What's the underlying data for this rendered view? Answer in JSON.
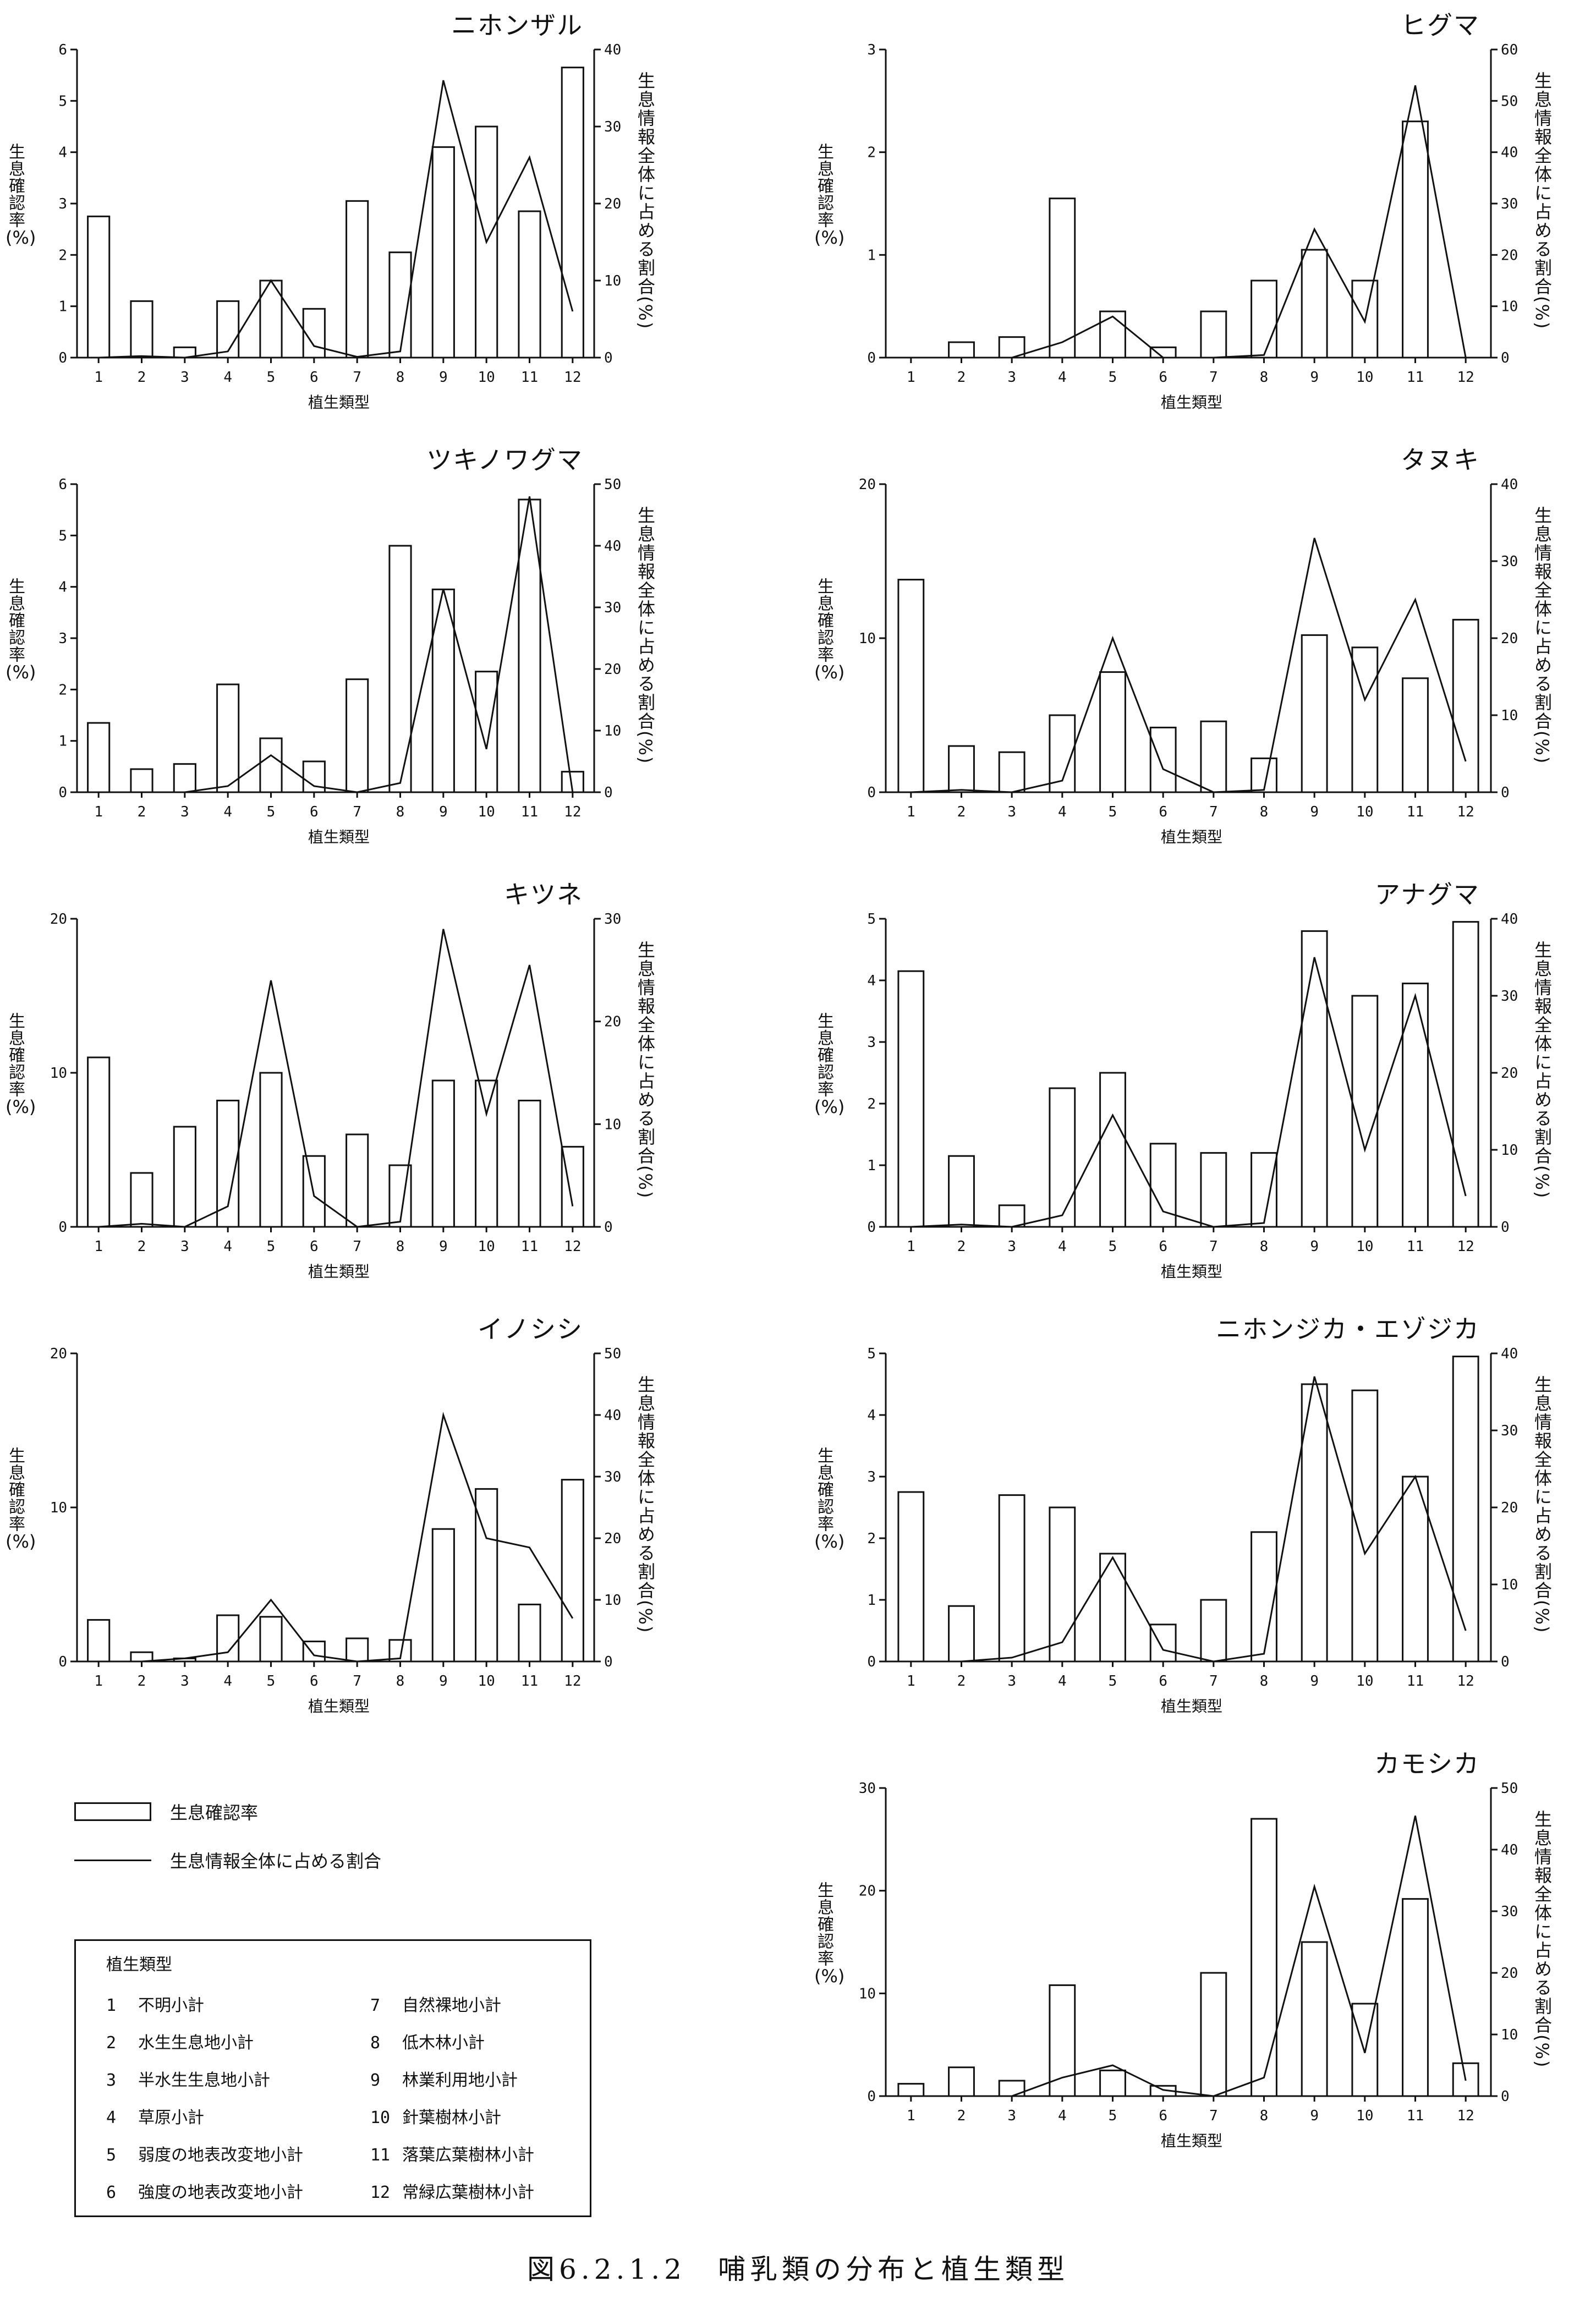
{
  "figure_caption": "図6.2.1.2　哺乳類の分布と植生類型",
  "left_axis_label": "生息確認率",
  "left_axis_unit": "(%)",
  "right_axis_label": "生息情報全体に占める割合(%)",
  "x_axis_label": "植生類型",
  "legend": {
    "bar_label": "生息確認率",
    "line_label": "生息情報全体に占める割合"
  },
  "vegetation_legend": {
    "title": "植生類型",
    "items": [
      {
        "num": "1",
        "name": "不明小計"
      },
      {
        "num": "2",
        "name": "水生生息地小計"
      },
      {
        "num": "3",
        "name": "半水生生息地小計"
      },
      {
        "num": "4",
        "name": "草原小計"
      },
      {
        "num": "5",
        "name": "弱度の地表改変地小計"
      },
      {
        "num": "6",
        "name": "強度の地表改変地小計"
      },
      {
        "num": "7",
        "name": "自然裸地小計"
      },
      {
        "num": "8",
        "name": "低木林小計"
      },
      {
        "num": "9",
        "name": "林業利用地小計"
      },
      {
        "num": "10",
        "name": "針葉樹林小計"
      },
      {
        "num": "11",
        "name": "落葉広葉樹林小計"
      },
      {
        "num": "12",
        "name": "常緑広葉樹林小計"
      }
    ]
  },
  "chart_data": [
    {
      "type": "bar",
      "title": "ニホンザル",
      "categories": [
        "1",
        "2",
        "3",
        "4",
        "5",
        "6",
        "7",
        "8",
        "9",
        "10",
        "11",
        "12"
      ],
      "ylim": [
        0,
        6
      ],
      "y_ticks": [
        "0",
        "1",
        "2",
        "3",
        "4",
        "5",
        "6"
      ],
      "y2lim": [
        0,
        40
      ],
      "y2_ticks": [
        "0",
        "10",
        "20",
        "30",
        "40"
      ],
      "series": [
        {
          "values": [
            2.75,
            1.1,
            0.2,
            1.1,
            1.5,
            0.95,
            3.05,
            2.05,
            4.1,
            4.5,
            2.85,
            5.65
          ]
        },
        {
          "values": [
            0,
            0.2,
            0,
            0.8,
            10,
            1.5,
            0.1,
            0.8,
            36,
            15,
            26,
            6
          ]
        }
      ]
    },
    {
      "type": "bar",
      "title": "ヒグマ",
      "categories": [
        "1",
        "2",
        "3",
        "4",
        "5",
        "6",
        "7",
        "8",
        "9",
        "10",
        "11",
        "12"
      ],
      "ylim": [
        0,
        3
      ],
      "y_ticks": [
        "0",
        "1",
        "2",
        "3"
      ],
      "y2lim": [
        0,
        60
      ],
      "y2_ticks": [
        "0",
        "10",
        "20",
        "30",
        "40",
        "50",
        "60"
      ],
      "series": [
        {
          "values": [
            0,
            0.15,
            0.2,
            1.55,
            0.45,
            0.1,
            0.45,
            0.75,
            1.05,
            0.75,
            2.3,
            0
          ]
        },
        {
          "values": [
            0,
            0,
            0,
            3,
            8,
            0,
            0,
            0.5,
            25,
            7,
            53,
            0
          ]
        }
      ]
    },
    {
      "type": "bar",
      "title": "ツキノワグマ",
      "categories": [
        "1",
        "2",
        "3",
        "4",
        "5",
        "6",
        "7",
        "8",
        "9",
        "10",
        "11",
        "12"
      ],
      "ylim": [
        0,
        6
      ],
      "y_ticks": [
        "0",
        "1",
        "2",
        "3",
        "4",
        "5",
        "6"
      ],
      "y2lim": [
        0,
        50
      ],
      "y2_ticks": [
        "0",
        "10",
        "20",
        "30",
        "40",
        "50"
      ],
      "series": [
        {
          "values": [
            1.35,
            0.45,
            0.55,
            2.1,
            1.05,
            0.6,
            2.2,
            4.8,
            3.95,
            2.35,
            5.7,
            0.4
          ]
        },
        {
          "values": [
            0,
            0,
            0,
            1,
            6,
            1,
            0,
            1.5,
            33,
            7,
            48,
            0
          ]
        }
      ]
    },
    {
      "type": "bar",
      "title": "タヌキ",
      "categories": [
        "1",
        "2",
        "3",
        "4",
        "5",
        "6",
        "7",
        "8",
        "9",
        "10",
        "11",
        "12"
      ],
      "ylim": [
        0,
        20
      ],
      "y_ticks": [
        "0",
        "10",
        "20"
      ],
      "y2lim": [
        0,
        40
      ],
      "y2_ticks": [
        "0",
        "10",
        "20",
        "30",
        "40"
      ],
      "series": [
        {
          "values": [
            13.8,
            3.0,
            2.6,
            5.0,
            7.8,
            4.2,
            4.6,
            2.2,
            10.2,
            9.4,
            7.4,
            11.2
          ]
        },
        {
          "values": [
            0,
            0.3,
            0,
            1.5,
            20,
            3,
            0,
            0.3,
            33,
            12,
            25,
            4
          ]
        }
      ]
    },
    {
      "type": "bar",
      "title": "キツネ",
      "categories": [
        "1",
        "2",
        "3",
        "4",
        "5",
        "6",
        "7",
        "8",
        "9",
        "10",
        "11",
        "12"
      ],
      "ylim": [
        0,
        20
      ],
      "y_ticks": [
        "0",
        "10",
        "20"
      ],
      "y2lim": [
        0,
        30
      ],
      "y2_ticks": [
        "0",
        "10",
        "20",
        "30"
      ],
      "series": [
        {
          "values": [
            11.0,
            3.5,
            6.5,
            8.2,
            10.0,
            4.6,
            6.0,
            4.0,
            9.5,
            9.5,
            8.2,
            5.2
          ]
        },
        {
          "values": [
            0,
            0.3,
            0,
            2,
            24,
            3,
            0,
            0.5,
            29,
            11,
            25.5,
            2
          ]
        }
      ]
    },
    {
      "type": "bar",
      "title": "アナグマ",
      "categories": [
        "1",
        "2",
        "3",
        "4",
        "5",
        "6",
        "7",
        "8",
        "9",
        "10",
        "11",
        "12"
      ],
      "ylim": [
        0,
        5
      ],
      "y_ticks": [
        "0",
        "1",
        "2",
        "3",
        "4",
        "5"
      ],
      "y2lim": [
        0,
        40
      ],
      "y2_ticks": [
        "0",
        "10",
        "20",
        "30",
        "40"
      ],
      "series": [
        {
          "values": [
            4.15,
            1.15,
            0.35,
            2.25,
            2.5,
            1.35,
            1.2,
            1.2,
            4.8,
            3.75,
            3.95,
            4.95
          ]
        },
        {
          "values": [
            0,
            0.3,
            0,
            1.5,
            14.5,
            2,
            0,
            0.5,
            35,
            10,
            30,
            4
          ]
        }
      ]
    },
    {
      "type": "bar",
      "title": "イノシシ",
      "categories": [
        "1",
        "2",
        "3",
        "4",
        "5",
        "6",
        "7",
        "8",
        "9",
        "10",
        "11",
        "12"
      ],
      "ylim": [
        0,
        20
      ],
      "y_ticks": [
        "0",
        "10",
        "20"
      ],
      "y2lim": [
        0,
        50
      ],
      "y2_ticks": [
        "0",
        "10",
        "20",
        "30",
        "40",
        "50"
      ],
      "series": [
        {
          "values": [
            2.7,
            0.6,
            0.2,
            3.0,
            2.9,
            1.3,
            1.5,
            1.4,
            8.6,
            11.2,
            3.7,
            11.8
          ]
        },
        {
          "values": [
            0,
            0,
            0.5,
            1.5,
            10,
            1,
            0,
            0.5,
            40,
            20,
            18.5,
            7
          ]
        }
      ]
    },
    {
      "type": "bar",
      "title": "ニホンジカ・エゾジカ",
      "categories": [
        "1",
        "2",
        "3",
        "4",
        "5",
        "6",
        "7",
        "8",
        "9",
        "10",
        "11",
        "12"
      ],
      "ylim": [
        0,
        5
      ],
      "y_ticks": [
        "0",
        "1",
        "2",
        "3",
        "4",
        "5"
      ],
      "y2lim": [
        0,
        40
      ],
      "y2_ticks": [
        "0",
        "10",
        "20",
        "30",
        "40"
      ],
      "series": [
        {
          "values": [
            2.75,
            0.9,
            2.7,
            2.5,
            1.75,
            0.6,
            1.0,
            2.1,
            4.5,
            4.4,
            3.0,
            4.95
          ]
        },
        {
          "values": [
            0,
            0,
            0.5,
            2.5,
            13.5,
            1.5,
            0,
            1,
            37,
            14,
            24,
            4
          ]
        }
      ]
    },
    {
      "type": "bar",
      "title": "カモシカ",
      "categories": [
        "1",
        "2",
        "3",
        "4",
        "5",
        "6",
        "7",
        "8",
        "9",
        "10",
        "11",
        "12"
      ],
      "ylim": [
        0,
        30
      ],
      "y_ticks": [
        "0",
        "10",
        "20",
        "30"
      ],
      "y2lim": [
        0,
        50
      ],
      "y2_ticks": [
        "0",
        "10",
        "20",
        "30",
        "40",
        "50"
      ],
      "series": [
        {
          "values": [
            1.2,
            2.8,
            1.5,
            10.8,
            2.5,
            1.0,
            12.0,
            27.0,
            15.0,
            9.0,
            19.2,
            3.2
          ]
        },
        {
          "values": [
            0,
            0,
            0,
            3,
            5,
            1,
            0,
            3,
            34,
            7,
            45.5,
            2.5
          ]
        }
      ]
    }
  ]
}
